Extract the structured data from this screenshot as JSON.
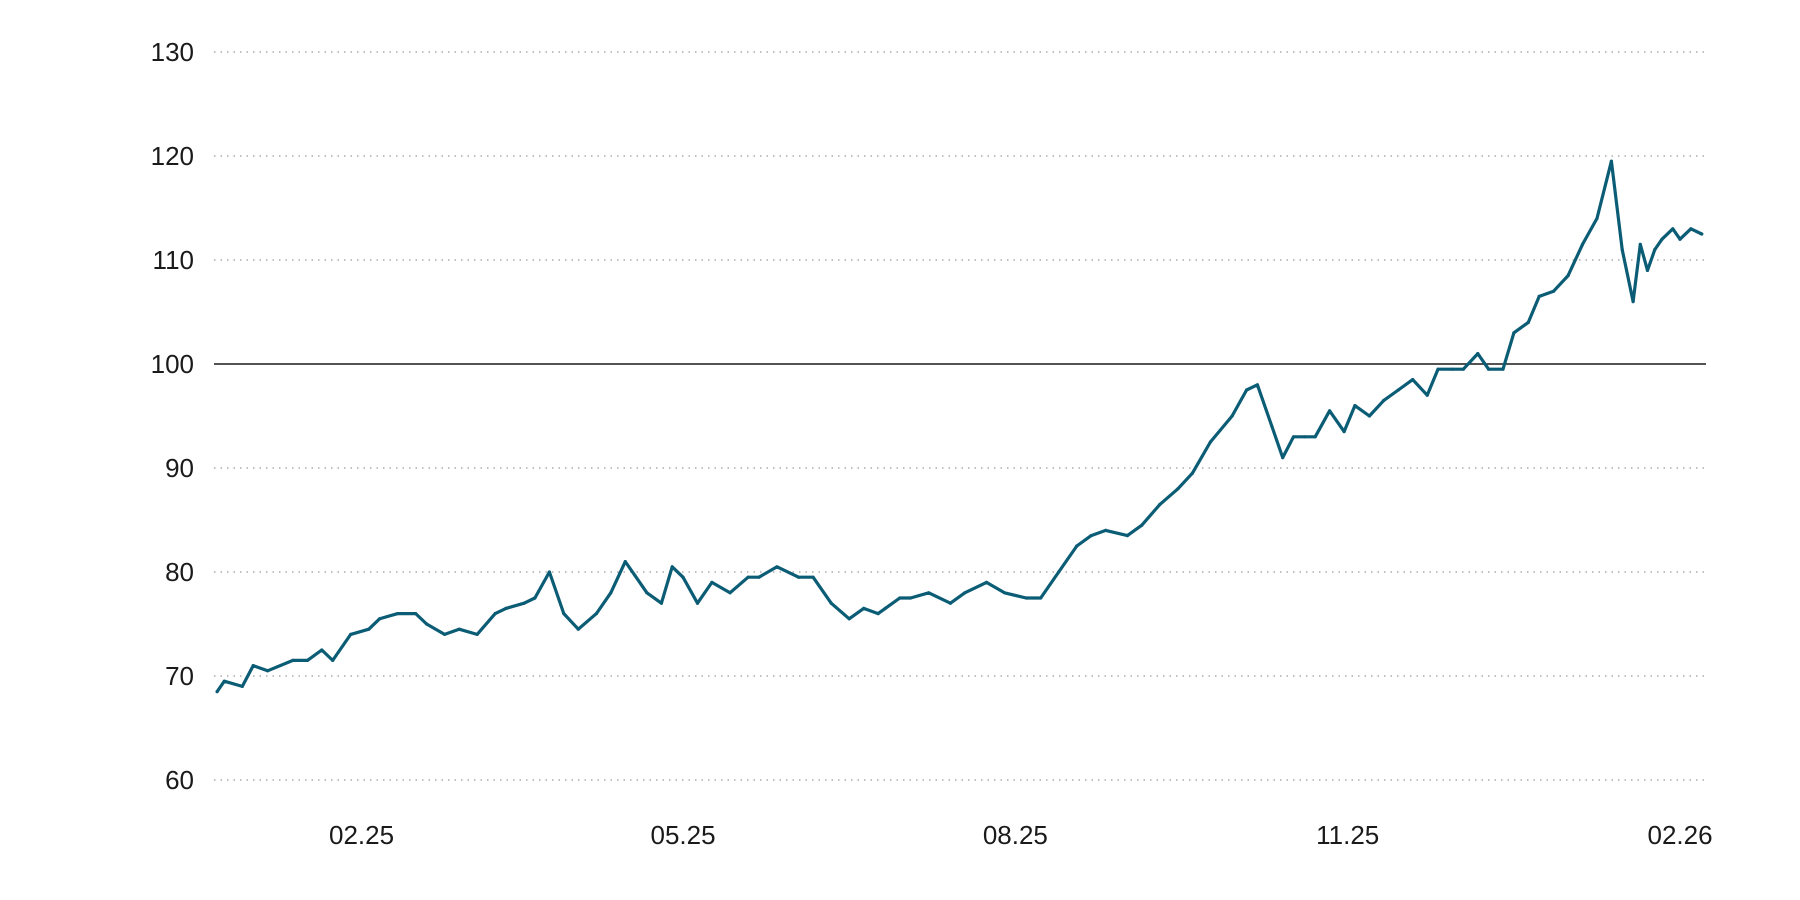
{
  "chart_data": {
    "type": "line",
    "title": "",
    "xlabel": "",
    "ylabel": "",
    "ylim": [
      60,
      130
    ],
    "yticks": [
      "60",
      "70",
      "80",
      "90",
      "100",
      "110",
      "120",
      "130"
    ],
    "reference_line": 100,
    "xlim": [
      "2025-01-01",
      "2026-02-28"
    ],
    "xticks": [
      {
        "label": "02.25",
        "date": "2025-02-15"
      },
      {
        "label": "05.25",
        "date": "2025-05-15"
      },
      {
        "label": "08.25",
        "date": "2025-08-15"
      },
      {
        "label": "11.25",
        "date": "2025-11-15"
      },
      {
        "label": "02.26",
        "date": "2026-02-15"
      }
    ],
    "grid": "horizontal-dotted",
    "legend": "none",
    "colors": {
      "line": "#0b5c75",
      "grid": "#9a9a9a",
      "reference": "#1a1a1a",
      "text": "#1a1a1a"
    },
    "series": [
      {
        "x": [
          "2025-01-06",
          "2025-01-08",
          "2025-01-13",
          "2025-01-16",
          "2025-01-20",
          "2025-01-27",
          "2025-01-31",
          "2025-02-04",
          "2025-02-07",
          "2025-02-12",
          "2025-02-17",
          "2025-02-20",
          "2025-02-25",
          "2025-03-02",
          "2025-03-05",
          "2025-03-10",
          "2025-03-14",
          "2025-03-19",
          "2025-03-24",
          "2025-03-27",
          "2025-04-01",
          "2025-04-04",
          "2025-04-08",
          "2025-04-12",
          "2025-04-16",
          "2025-04-21",
          "2025-04-25",
          "2025-04-29",
          "2025-05-05",
          "2025-05-09",
          "2025-05-12",
          "2025-05-15",
          "2025-05-19",
          "2025-05-23",
          "2025-05-28",
          "2025-06-02",
          "2025-06-05",
          "2025-06-10",
          "2025-06-16",
          "2025-06-20",
          "2025-06-25",
          "2025-06-30",
          "2025-07-04",
          "2025-07-08",
          "2025-07-10",
          "2025-07-14",
          "2025-07-17",
          "2025-07-22",
          "2025-07-28",
          "2025-08-01",
          "2025-08-07",
          "2025-08-12",
          "2025-08-18",
          "2025-08-22",
          "2025-08-27",
          "2025-09-01",
          "2025-09-05",
          "2025-09-09",
          "2025-09-15",
          "2025-09-19",
          "2025-09-24",
          "2025-09-29",
          "2025-10-03",
          "2025-10-08",
          "2025-10-14",
          "2025-10-18",
          "2025-10-21",
          "2025-10-25",
          "2025-10-28",
          "2025-10-31",
          "2025-11-03",
          "2025-11-06",
          "2025-11-10",
          "2025-11-14",
          "2025-11-17",
          "2025-11-21",
          "2025-11-25",
          "2025-11-29",
          "2025-12-03",
          "2025-12-07",
          "2025-12-10",
          "2025-12-14",
          "2025-12-17",
          "2025-12-21",
          "2025-12-24",
          "2025-12-28",
          "2025-12-31",
          "2026-01-04",
          "2026-01-07",
          "2026-01-11",
          "2026-01-15",
          "2026-01-19",
          "2026-01-23",
          "2026-01-27",
          "2026-01-30",
          "2026-02-02",
          "2026-02-04",
          "2026-02-06",
          "2026-02-08",
          "2026-02-10",
          "2026-02-13",
          "2026-02-15",
          "2026-02-18",
          "2026-02-21"
        ],
        "values": [
          68.5,
          69.5,
          69.0,
          71.0,
          70.5,
          71.5,
          71.5,
          72.5,
          71.5,
          74.0,
          74.5,
          75.5,
          76.0,
          76.0,
          75.0,
          74.0,
          74.5,
          74.0,
          76.0,
          76.5,
          77.0,
          77.5,
          80.0,
          76.0,
          74.5,
          76.0,
          78.0,
          81.0,
          78.0,
          77.0,
          80.5,
          79.5,
          77.0,
          79.0,
          78.0,
          79.5,
          79.5,
          80.5,
          79.5,
          79.5,
          77.0,
          75.5,
          76.5,
          76.0,
          76.5,
          77.5,
          77.5,
          78.0,
          77.0,
          78.0,
          79.0,
          78.0,
          77.5,
          77.5,
          80.0,
          82.5,
          83.5,
          84.0,
          83.5,
          84.5,
          86.5,
          88.0,
          89.5,
          92.5,
          95.0,
          97.5,
          98.0,
          94.0,
          91.0,
          93.0,
          93.0,
          93.0,
          95.5,
          93.5,
          96.0,
          95.0,
          96.5,
          97.5,
          98.5,
          97.0,
          99.5,
          99.5,
          99.5,
          101.0,
          99.5,
          99.5,
          103.0,
          104.0,
          106.5,
          107.0,
          108.5,
          111.5,
          114.0,
          119.5,
          111.0,
          106.0,
          111.5,
          109.0,
          111.0,
          112.0,
          113.0,
          112.0,
          113.0,
          112.5
        ]
      }
    ]
  }
}
